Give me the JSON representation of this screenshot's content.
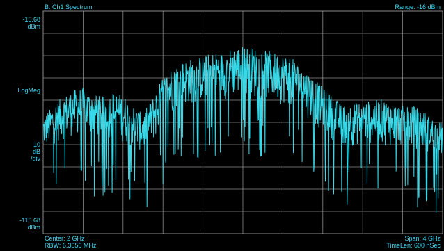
{
  "colors": {
    "background": "#000000",
    "trace": "#37d9e8",
    "grid": "#8a8a8a",
    "text": "#3fd7f0"
  },
  "header": {
    "title": "B: Ch1 Spectrum",
    "range": "Range: -16 dBm"
  },
  "yaxis": {
    "top_value": "-15.68",
    "top_unit": "dBm",
    "mode": "LogMeg",
    "scale_value": "10",
    "scale_unit": "dB",
    "scale_per": "/div",
    "bottom_value": "-115.68",
    "bottom_unit": "dBm"
  },
  "footer": {
    "center": "Center: 2 GHz",
    "rbw": "RBW: 6.3656 MHz",
    "span": "Span: 4 GHz",
    "timelen": "TimeLen: 600 nSec"
  },
  "chart_data": {
    "type": "line",
    "xlim": [
      0,
      4
    ],
    "ylim": [
      -115.68,
      -15.68
    ],
    "grid": true,
    "x_divisions": 10,
    "y_divisions": 10,
    "series": [
      {
        "envelope_x_GHz": [
          0.0,
          0.1,
          0.2,
          0.3,
          0.4,
          0.5,
          0.6,
          0.7,
          0.8,
          0.9,
          1.0,
          1.1,
          1.2,
          1.3,
          1.4,
          1.5,
          1.6,
          1.7,
          1.8,
          1.9,
          2.0,
          2.1,
          2.2,
          2.3,
          2.4,
          2.5,
          2.6,
          2.7,
          2.8,
          2.9,
          3.0,
          3.1,
          3.2,
          3.3,
          3.4,
          3.5,
          3.6,
          3.7,
          3.8,
          3.9,
          4.0
        ],
        "envelope_peak_dBm": [
          -63,
          -58,
          -54,
          -51,
          -50,
          -53,
          -54,
          -52,
          -53,
          -58,
          -62,
          -54,
          -45,
          -40,
          -38,
          -37,
          -36,
          -34,
          -34,
          -32,
          -31,
          -32,
          -33,
          -34,
          -35,
          -37,
          -41,
          -45,
          -50,
          -54,
          -58,
          -57,
          -56,
          -56,
          -55,
          -57,
          -58,
          -58,
          -60,
          -64,
          -66
        ],
        "envelope_floor_dBm": [
          -79,
          -76,
          -74,
          -72,
          -72,
          -73,
          -74,
          -73,
          -75,
          -78,
          -80,
          -76,
          -68,
          -62,
          -59,
          -58,
          -57,
          -56,
          -56,
          -55,
          -55,
          -56,
          -56,
          -57,
          -58,
          -59,
          -62,
          -66,
          -71,
          -74,
          -77,
          -77,
          -76,
          -76,
          -76,
          -77,
          -77,
          -78,
          -79,
          -80,
          -82
        ]
      }
    ]
  }
}
